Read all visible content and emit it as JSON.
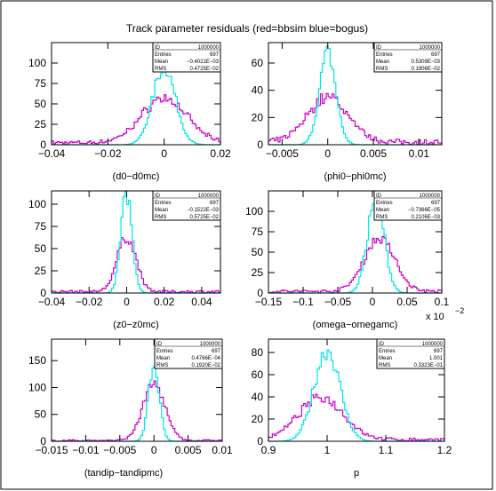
{
  "title": "Track parameter residuals (red=bbsim blue=bogus)",
  "colors": {
    "bbsim": "#cc00cc",
    "bogus": "#00e5e5",
    "frame": "#000000"
  },
  "chart_data": [
    {
      "type": "histogram",
      "xlabel": "(d0−d0mc)",
      "xlim": [
        -0.04,
        0.02
      ],
      "ylim": [
        0,
        125
      ],
      "xticks": [
        -0.04,
        -0.02,
        0,
        0.02
      ],
      "xtick_labels": [
        "−0.04",
        "−0.02",
        "0",
        "0.02"
      ],
      "yticks": [
        0,
        25,
        50,
        75,
        100
      ],
      "ytick_labels": [
        "0",
        "25",
        "50",
        "75",
        "100"
      ],
      "exponent_label": "",
      "stats": {
        "ID": "1000000",
        "Entries": "697",
        "Mean": "−0.4021E−03",
        "RMS": "0.4725E−02"
      },
      "series": [
        {
          "name": "bbsim",
          "center": 0.0,
          "width": 0.008,
          "peak": 55,
          "noise": 5
        },
        {
          "name": "bogus",
          "center": 0.0,
          "width": 0.004,
          "peak": 96,
          "noise": 0
        }
      ]
    },
    {
      "type": "histogram",
      "xlabel": "(phi0−phi0mc)",
      "xlim": [
        -0.0065,
        0.0125
      ],
      "ylim": [
        0,
        75
      ],
      "xticks": [
        -0.005,
        0,
        0.005,
        0.01
      ],
      "xtick_labels": [
        "−0.005",
        "0",
        "0.005",
        "0.01"
      ],
      "yticks": [
        0,
        20,
        40,
        60
      ],
      "ytick_labels": [
        "0",
        "20",
        "40",
        "60"
      ],
      "exponent_label": "",
      "stats": {
        "ID": "1000000",
        "Entries": "697",
        "Mean": "0.5309E−03",
        "RMS": "0.1906E−02"
      },
      "series": [
        {
          "name": "bbsim",
          "center": 0.0,
          "width": 0.0022,
          "peak": 33,
          "noise": 4
        },
        {
          "name": "bogus",
          "center": 0.0,
          "width": 0.0009,
          "peak": 67,
          "noise": 0
        }
      ]
    },
    {
      "type": "histogram",
      "xlabel": "(z0−z0mc)",
      "xlim": [
        -0.04,
        0.05
      ],
      "ylim": [
        0,
        115
      ],
      "xticks": [
        -0.04,
        -0.02,
        0,
        0.02,
        0.04
      ],
      "xtick_labels": [
        "−0.04",
        "−0.02",
        "0",
        "0.02",
        "0.04"
      ],
      "yticks": [
        0,
        25,
        50,
        75,
        100
      ],
      "ytick_labels": [
        "0",
        "25",
        "50",
        "75",
        "100"
      ],
      "exponent_label": "",
      "stats": {
        "ID": "1000000",
        "Entries": "697",
        "Mean": "−0.1522E−03",
        "RMS": "0.5725E−02"
      },
      "series": [
        {
          "name": "bbsim",
          "center": 0.0,
          "width": 0.005,
          "peak": 62,
          "noise": 3
        },
        {
          "name": "bogus",
          "center": 0.0,
          "width": 0.003,
          "peak": 112,
          "noise": 0
        }
      ]
    },
    {
      "type": "histogram",
      "xlabel": "(omega−omegamc)",
      "xlim": [
        -0.15,
        0.1
      ],
      "ylim": [
        0,
        125
      ],
      "xticks": [
        -0.15,
        -0.1,
        -0.05,
        0,
        0.05,
        0.1
      ],
      "xtick_labels": [
        "−0.15",
        "−0.1",
        "−0.05",
        "0",
        "0.05",
        "0.1"
      ],
      "yticks": [
        0,
        25,
        50,
        75,
        100
      ],
      "ytick_labels": [
        "0",
        "25",
        "50",
        "75",
        "100"
      ],
      "exponent_label": "x 10",
      "exponent_power": "−2",
      "stats": {
        "ID": "1000000",
        "Entries": "697",
        "Mean": "−0.7366E−05",
        "RMS": "0.2106E−03"
      },
      "series": [
        {
          "name": "bbsim",
          "center": 0.01,
          "width": 0.022,
          "peak": 65,
          "noise": 4
        },
        {
          "name": "bogus",
          "center": 0.005,
          "width": 0.012,
          "peak": 118,
          "noise": 0
        }
      ]
    },
    {
      "type": "histogram",
      "xlabel": "(tandip−tandipmc)",
      "xlim": [
        -0.015,
        0.01
      ],
      "ylim": [
        0,
        190
      ],
      "xticks": [
        -0.015,
        -0.01,
        -0.005,
        0,
        0.005,
        0.01
      ],
      "xtick_labels": [
        "−0.015",
        "−0.01",
        "−0.005",
        "0",
        "0.005",
        "0.01"
      ],
      "yticks": [
        0,
        50,
        100,
        150
      ],
      "ytick_labels": [
        "0",
        "50",
        "100",
        "150"
      ],
      "exponent_label": "",
      "stats": {
        "ID": "1000000",
        "Entries": "697",
        "Mean": "0.4766E−04",
        "RMS": "0.1920E−02"
      },
      "series": [
        {
          "name": "bbsim",
          "center": 0.0,
          "width": 0.0016,
          "peak": 105,
          "noise": 3
        },
        {
          "name": "bogus",
          "center": 0.0,
          "width": 0.0008,
          "peak": 140,
          "noise": 0
        }
      ]
    },
    {
      "type": "histogram",
      "xlabel": "p",
      "xlim": [
        0.9,
        1.2
      ],
      "ylim": [
        0,
        92
      ],
      "xticks": [
        0.9,
        1.0,
        1.1,
        1.2
      ],
      "xtick_labels": [
        "0.9",
        "1",
        "1.1",
        "1.2"
      ],
      "yticks": [
        0,
        20,
        40,
        60,
        80
      ],
      "ytick_labels": [
        "0",
        "20",
        "40",
        "60",
        "80"
      ],
      "exponent_label": "",
      "stats": {
        "ID": "1000000",
        "Entries": "697",
        "Mean": "1.001",
        "RMS": "0.3323E−01"
      },
      "series": [
        {
          "name": "bbsim",
          "center": 0.99,
          "width": 0.038,
          "peak": 38,
          "noise": 3
        },
        {
          "name": "bogus",
          "center": 1.0,
          "width": 0.022,
          "peak": 82,
          "noise": 0
        }
      ]
    }
  ]
}
